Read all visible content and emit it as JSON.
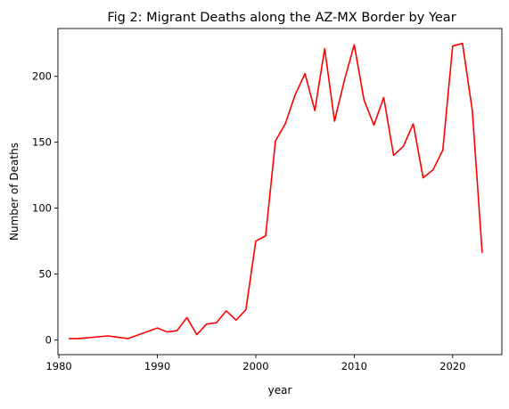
{
  "chart_data": {
    "type": "line",
    "title": "Fig 2: Migrant Deaths along the AZ-MX Border by Year",
    "xlabel": "year",
    "ylabel": "Number of Deaths",
    "xlim": [
      1979.9,
      1985.0
    ],
    "ylim": [
      -11.2,
      236.3
    ],
    "xticks": [
      1980,
      1990,
      2000,
      2010,
      2020
    ],
    "yticks": [
      0,
      50,
      100,
      150,
      200
    ],
    "grid": false,
    "series": [
      {
        "name": "Deaths",
        "color": "#ff0000",
        "x": [
          1981,
          1982,
          1985,
          1987,
          1990,
          1991,
          1992,
          1993,
          1994,
          1995,
          1996,
          1997,
          1998,
          1999,
          2000,
          2001,
          2002,
          2003,
          2004,
          2005,
          2006,
          2007,
          2008,
          2009,
          2010,
          2011,
          2012,
          2013,
          2014,
          2015,
          2016,
          2017,
          2018,
          2019,
          2020,
          2021,
          2022,
          2023
        ],
        "y": [
          1,
          1,
          3,
          1,
          9,
          6,
          7,
          17,
          4,
          12,
          13,
          22,
          15,
          23,
          75,
          79,
          151,
          164,
          186,
          202,
          174,
          221,
          166,
          197,
          224,
          182,
          163,
          184,
          140,
          147,
          164,
          123,
          129,
          144,
          223,
          225,
          174,
          66
        ]
      }
    ]
  }
}
